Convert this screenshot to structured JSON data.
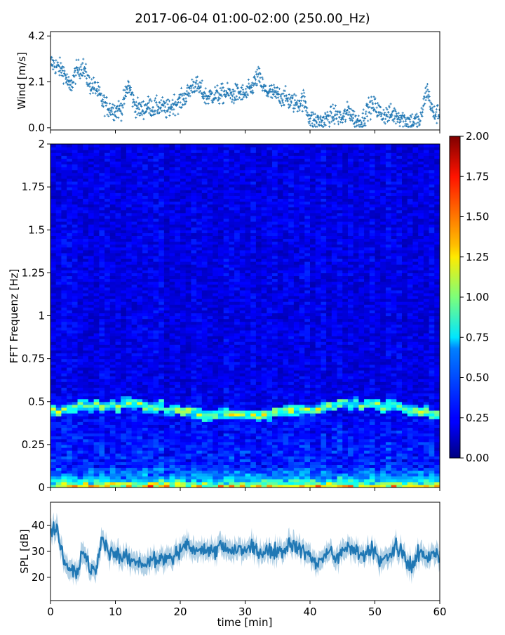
{
  "figure": {
    "title": "2017-06-04 01:00-02:00 (250.00_Hz)"
  },
  "chart_data": [
    {
      "id": "wind",
      "type": "scatter",
      "ylabel": "Wind [m/s]",
      "xlabel": "",
      "xlim": [
        0,
        60
      ],
      "ylim": [
        -0.1,
        4.4
      ],
      "yticks": [
        0.0,
        2.1,
        4.2
      ],
      "ytick_labels": [
        "0.0",
        "2.1",
        "4.2"
      ],
      "xticks": [
        0,
        10,
        20,
        30,
        40,
        50,
        60
      ],
      "color": "#1f77b4",
      "x": [
        0,
        1,
        2,
        3,
        4,
        5,
        6,
        7,
        8,
        9,
        10,
        11,
        12,
        13,
        14,
        15,
        16,
        17,
        18,
        19,
        20,
        21,
        22,
        23,
        24,
        25,
        26,
        27,
        28,
        29,
        30,
        31,
        32,
        33,
        34,
        35,
        36,
        37,
        38,
        39,
        40,
        41,
        42,
        43,
        44,
        45,
        46,
        47,
        48,
        49,
        50,
        51,
        52,
        53,
        54,
        55,
        56,
        57,
        58,
        59,
        60
      ],
      "y": [
        3.0,
        2.8,
        2.6,
        1.8,
        2.6,
        2.8,
        2.0,
        1.8,
        1.2,
        0.9,
        0.8,
        0.9,
        2.0,
        1.0,
        0.8,
        1.0,
        0.9,
        1.0,
        0.8,
        1.1,
        1.2,
        1.5,
        2.0,
        1.8,
        1.4,
        1.5,
        1.5,
        1.6,
        1.5,
        1.6,
        1.5,
        1.8,
        2.4,
        1.7,
        1.6,
        1.5,
        1.4,
        1.2,
        1.1,
        1.3,
        0.4,
        0.3,
        0.3,
        0.5,
        0.6,
        0.4,
        0.8,
        0.3,
        0.3,
        0.9,
        1.0,
        0.6,
        0.6,
        0.6,
        0.5,
        0.3,
        0.3,
        0.3,
        1.8,
        0.6,
        0.7
      ]
    },
    {
      "id": "spectrogram",
      "type": "heatmap",
      "ylabel": "FFT Frequenz [Hz]",
      "xlabel": "",
      "xlim": [
        0,
        60
      ],
      "ylim": [
        0,
        2
      ],
      "yticks": [
        0,
        0.25,
        0.5,
        0.75,
        1,
        1.25,
        1.5,
        1.75,
        2
      ],
      "ytick_labels": [
        "0",
        "0.25",
        "0.5",
        "0.75",
        "1",
        "1.25",
        "1.5",
        "1.75",
        "2"
      ],
      "xticks": [
        0,
        10,
        20,
        30,
        40,
        50,
        60
      ],
      "colormap": "jet",
      "colorbar": {
        "vmin": 0.0,
        "vmax": 2.0,
        "ticks": [
          0.0,
          0.25,
          0.5,
          0.75,
          1.0,
          1.25,
          1.5,
          1.75,
          2.0
        ],
        "tick_labels": [
          "0.00",
          "0.25",
          "0.50",
          "0.75",
          "1.00",
          "1.25",
          "1.50",
          "1.75",
          "2.00"
        ]
      },
      "dominant_band_hz": 0.45,
      "background_level": 0.2,
      "low_frequency_level": 1.2
    },
    {
      "id": "spl",
      "type": "line",
      "ylabel": "SPL [dB]",
      "xlabel": "time [min]",
      "xlim": [
        0,
        60
      ],
      "ylim": [
        11,
        49
      ],
      "yticks": [
        20,
        30,
        40
      ],
      "ytick_labels": [
        "20",
        "30",
        "40"
      ],
      "xticks": [
        0,
        10,
        20,
        30,
        40,
        50,
        60
      ],
      "xtick_labels": [
        "0",
        "10",
        "20",
        "30",
        "40",
        "50",
        "60"
      ],
      "color": "#1f77b4",
      "x": [
        0,
        1,
        2,
        3,
        4,
        5,
        6,
        7,
        8,
        9,
        10,
        11,
        12,
        13,
        14,
        15,
        16,
        17,
        18,
        19,
        20,
        21,
        22,
        23,
        24,
        25,
        26,
        27,
        28,
        29,
        30,
        31,
        32,
        33,
        34,
        35,
        36,
        37,
        38,
        39,
        40,
        41,
        42,
        43,
        44,
        45,
        46,
        47,
        48,
        49,
        50,
        51,
        52,
        53,
        54,
        55,
        56,
        57,
        58,
        59,
        60
      ],
      "y": [
        38,
        40,
        28,
        24,
        22,
        30,
        24,
        22,
        35,
        30,
        30,
        28,
        27,
        26,
        25,
        25,
        26,
        28,
        27,
        28,
        30,
        33,
        31,
        32,
        30,
        30,
        32,
        31,
        30,
        31,
        30,
        31,
        30,
        30,
        29,
        31,
        30,
        34,
        31,
        30,
        29,
        25,
        27,
        30,
        27,
        30,
        32,
        30,
        28,
        30,
        31,
        26,
        27,
        32,
        30,
        26,
        25,
        30,
        28,
        29,
        28
      ]
    }
  ]
}
